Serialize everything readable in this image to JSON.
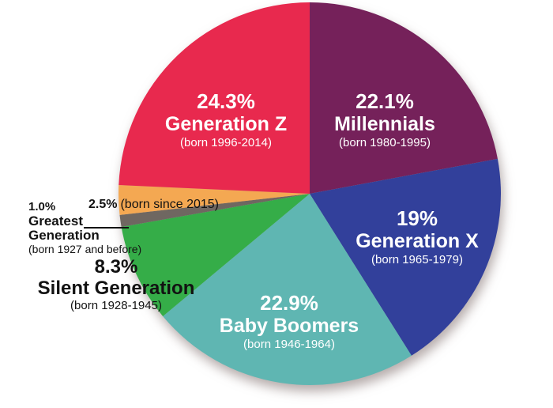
{
  "chart_data": {
    "type": "pie",
    "direction": "clockwise",
    "start": "12-oclock",
    "legend": "none",
    "background_color": "#FFFFFF",
    "slices": [
      {
        "name": "Millennials",
        "percent": 22.1,
        "percent_label": "22.1%",
        "birth_label": "(born 1980-1995)",
        "color": "#75215A",
        "label_color": "#FFFFFF"
      },
      {
        "name": "Generation X",
        "percent": 19,
        "percent_label": "19%",
        "birth_label": "(born 1965-1979)",
        "color": "#32409B",
        "label_color": "#FFFFFF"
      },
      {
        "name": "Baby Boomers",
        "percent": 22.9,
        "percent_label": "22.9%",
        "birth_label": "(born 1946-1964)",
        "color": "#5FB6B2",
        "label_color": "#FFFFFF"
      },
      {
        "name": "Silent Generation",
        "percent": 8.3,
        "percent_label": "8.3%",
        "birth_label": "(born 1928-1945)",
        "color": "#35AD48",
        "label_color": "#121212"
      },
      {
        "name": "Greatest Generation",
        "percent": 1.0,
        "percent_label": "1.0%",
        "birth_label": "(born 1927 and before)",
        "color": "#6F6761",
        "label_color": "#121212"
      },
      {
        "name": "",
        "percent": 2.5,
        "percent_label": "2.5%",
        "birth_label": "(born since 2015)",
        "color": "#F4A852",
        "label_color": "#121212"
      },
      {
        "name": "Generation Z",
        "percent": 24.3,
        "percent_label": "24.3%",
        "birth_label": "(born 1996-2014)",
        "color": "#E8294E",
        "label_color": "#FFFFFF"
      }
    ]
  }
}
